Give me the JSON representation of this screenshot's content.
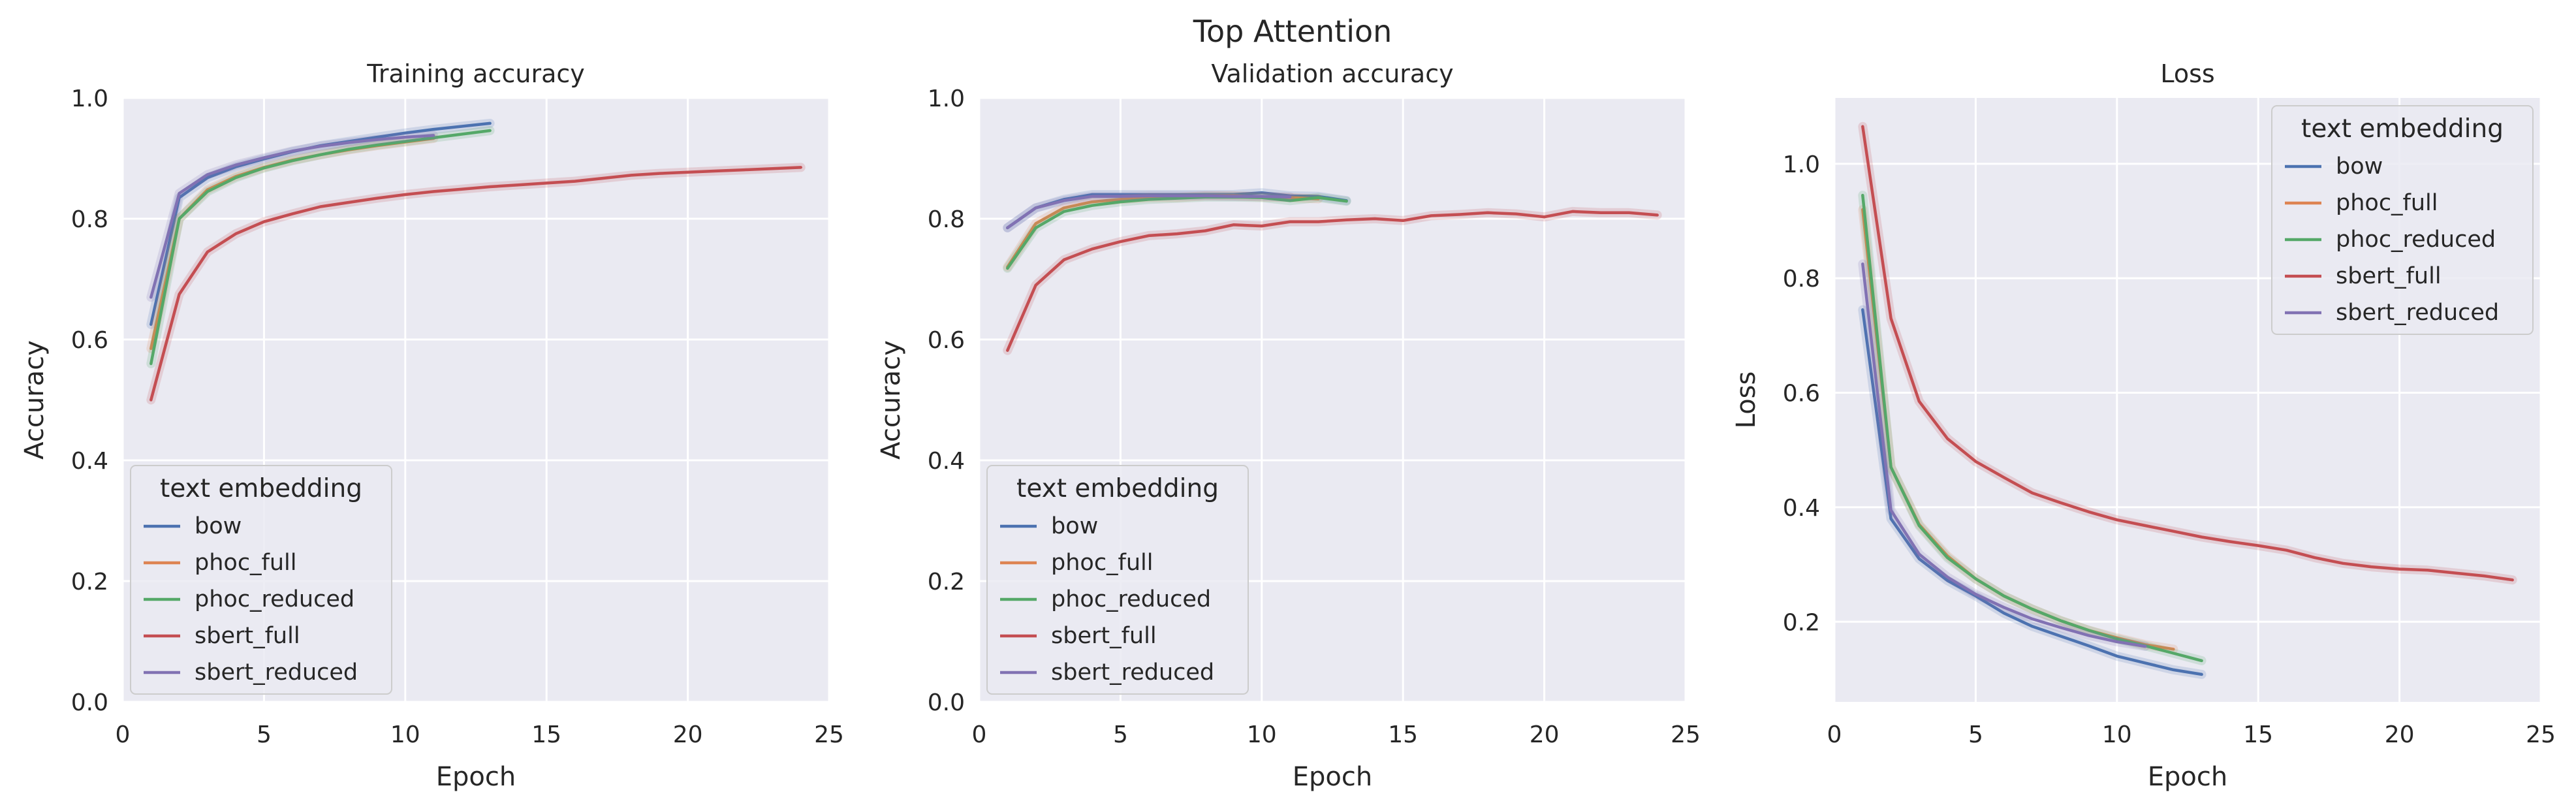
{
  "figure": {
    "title": "Top Attention"
  },
  "colors": {
    "bow": "#4c72b0",
    "phoc_full": "#dd8452",
    "phoc_reduced": "#55a868",
    "sbert_full": "#c44e52",
    "sbert_reduced": "#8172b3",
    "plot_background": "#eaeaf2",
    "grid": "#ffffff"
  },
  "legend_title": "text embedding",
  "chart_data": [
    {
      "type": "line",
      "title": "Training accuracy",
      "xlabel": "Epoch",
      "ylabel": "Accuracy",
      "xlim": [
        0,
        25
      ],
      "ylim": [
        0.0,
        1.0
      ],
      "xticks": [
        0,
        5,
        10,
        15,
        20,
        25
      ],
      "yticks": [
        0.0,
        0.2,
        0.4,
        0.6,
        0.8,
        1.0
      ],
      "xtick_labels": [
        "0",
        "5",
        "10",
        "15",
        "20",
        "25"
      ],
      "ytick_labels": [
        "0.0",
        "0.2",
        "0.4",
        "0.6",
        "0.8",
        "1.0"
      ],
      "grid": true,
      "legend": {
        "placement": "lower-left",
        "title": "text embedding",
        "entries": [
          "bow",
          "phoc_full",
          "phoc_reduced",
          "sbert_full",
          "sbert_reduced"
        ]
      },
      "series": [
        {
          "name": "bow",
          "color": "#4c72b0",
          "x": [
            1,
            2,
            3,
            4,
            5,
            6,
            7,
            8,
            9,
            10,
            11,
            12,
            13
          ],
          "y": [
            0.625,
            0.835,
            0.868,
            0.886,
            0.899,
            0.911,
            0.921,
            0.928,
            0.935,
            0.942,
            0.948,
            0.953,
            0.958
          ]
        },
        {
          "name": "phoc_full",
          "color": "#dd8452",
          "x": [
            1,
            2,
            3,
            4,
            5,
            6,
            7,
            8,
            9,
            10,
            11
          ],
          "y": [
            0.585,
            0.8,
            0.848,
            0.87,
            0.885,
            0.897,
            0.906,
            0.914,
            0.921,
            0.927,
            0.933
          ]
        },
        {
          "name": "phoc_reduced",
          "color": "#55a868",
          "x": [
            1,
            2,
            3,
            4,
            5,
            6,
            7,
            8,
            9,
            10,
            11,
            12,
            13
          ],
          "y": [
            0.56,
            0.8,
            0.845,
            0.868,
            0.884,
            0.896,
            0.906,
            0.915,
            0.922,
            0.928,
            0.934,
            0.94,
            0.946
          ]
        },
        {
          "name": "sbert_full",
          "color": "#c44e52",
          "x": [
            1,
            2,
            3,
            4,
            5,
            6,
            7,
            8,
            9,
            10,
            11,
            12,
            13,
            14,
            15,
            16,
            17,
            18,
            19,
            20,
            21,
            22,
            23,
            24
          ],
          "y": [
            0.5,
            0.675,
            0.745,
            0.775,
            0.795,
            0.808,
            0.82,
            0.827,
            0.834,
            0.84,
            0.845,
            0.849,
            0.853,
            0.856,
            0.859,
            0.862,
            0.867,
            0.872,
            0.875,
            0.877,
            0.879,
            0.881,
            0.883,
            0.885
          ]
        },
        {
          "name": "sbert_reduced",
          "color": "#8172b3",
          "x": [
            1,
            2,
            3,
            4,
            5,
            6,
            7,
            8,
            9,
            10,
            11
          ],
          "y": [
            0.67,
            0.842,
            0.873,
            0.889,
            0.901,
            0.912,
            0.92,
            0.926,
            0.931,
            0.935,
            0.938
          ]
        }
      ]
    },
    {
      "type": "line",
      "title": "Validation accuracy",
      "xlabel": "Epoch",
      "ylabel": "Accuracy",
      "xlim": [
        0,
        25
      ],
      "ylim": [
        0.0,
        1.0
      ],
      "xticks": [
        0,
        5,
        10,
        15,
        20,
        25
      ],
      "yticks": [
        0.0,
        0.2,
        0.4,
        0.6,
        0.8,
        1.0
      ],
      "xtick_labels": [
        "0",
        "5",
        "10",
        "15",
        "20",
        "25"
      ],
      "ytick_labels": [
        "0.0",
        "0.2",
        "0.4",
        "0.6",
        "0.8",
        "1.0"
      ],
      "grid": true,
      "legend": {
        "placement": "lower-left",
        "title": "text embedding",
        "entries": [
          "bow",
          "phoc_full",
          "phoc_reduced",
          "sbert_full",
          "sbert_reduced"
        ]
      },
      "series": [
        {
          "name": "bow",
          "color": "#4c72b0",
          "x": [
            1,
            2,
            3,
            4,
            5,
            6,
            7,
            8,
            9,
            10,
            11,
            12,
            13
          ],
          "y": [
            0.785,
            0.818,
            0.832,
            0.84,
            0.84,
            0.84,
            0.84,
            0.84,
            0.84,
            0.843,
            0.838,
            0.837,
            0.83
          ]
        },
        {
          "name": "phoc_full",
          "color": "#dd8452",
          "x": [
            1,
            2,
            3,
            4,
            5,
            6,
            7,
            8,
            9,
            10,
            11,
            12
          ],
          "y": [
            0.72,
            0.792,
            0.818,
            0.828,
            0.832,
            0.835,
            0.835,
            0.838,
            0.838,
            0.836,
            0.835,
            0.833
          ]
        },
        {
          "name": "phoc_reduced",
          "color": "#55a868",
          "x": [
            1,
            2,
            3,
            4,
            5,
            6,
            7,
            8,
            9,
            10,
            11,
            12,
            13
          ],
          "y": [
            0.718,
            0.785,
            0.812,
            0.822,
            0.828,
            0.832,
            0.834,
            0.836,
            0.836,
            0.835,
            0.83,
            0.835,
            0.829
          ]
        },
        {
          "name": "sbert_full",
          "color": "#c44e52",
          "x": [
            1,
            2,
            3,
            4,
            5,
            6,
            7,
            8,
            9,
            10,
            11,
            12,
            13,
            14,
            15,
            16,
            17,
            18,
            19,
            20,
            21,
            22,
            23,
            24
          ],
          "y": [
            0.582,
            0.69,
            0.732,
            0.75,
            0.762,
            0.772,
            0.775,
            0.78,
            0.79,
            0.788,
            0.795,
            0.795,
            0.798,
            0.8,
            0.797,
            0.805,
            0.807,
            0.81,
            0.808,
            0.803,
            0.812,
            0.81,
            0.81,
            0.806
          ]
        },
        {
          "name": "sbert_reduced",
          "color": "#8172b3",
          "x": [
            1,
            2,
            3,
            4,
            5,
            6,
            7,
            8,
            9,
            10,
            11
          ],
          "y": [
            0.785,
            0.818,
            0.83,
            0.837,
            0.837,
            0.838,
            0.838,
            0.838,
            0.837,
            0.837,
            0.836
          ]
        }
      ]
    },
    {
      "type": "line",
      "title": "Loss",
      "xlabel": "Epoch",
      "ylabel": "Loss",
      "xlim": [
        0,
        25
      ],
      "ylim": [
        0.06,
        1.115
      ],
      "xticks": [
        0,
        5,
        10,
        15,
        20,
        25
      ],
      "yticks": [
        0.2,
        0.4,
        0.6,
        0.8,
        1.0
      ],
      "xtick_labels": [
        "0",
        "5",
        "10",
        "15",
        "20",
        "25"
      ],
      "ytick_labels": [
        "0.2",
        "0.4",
        "0.6",
        "0.8",
        "1.0"
      ],
      "grid": true,
      "legend": {
        "placement": "top-right",
        "title": "text embedding",
        "entries": [
          "bow",
          "phoc_full",
          "phoc_reduced",
          "sbert_full",
          "sbert_reduced"
        ]
      },
      "series": [
        {
          "name": "bow",
          "color": "#4c72b0",
          "x": [
            1,
            2,
            3,
            4,
            5,
            6,
            7,
            8,
            9,
            10,
            11,
            12,
            13
          ],
          "y": [
            0.745,
            0.38,
            0.31,
            0.272,
            0.245,
            0.215,
            0.192,
            0.175,
            0.158,
            0.14,
            0.128,
            0.116,
            0.108
          ]
        },
        {
          "name": "phoc_full",
          "color": "#dd8452",
          "x": [
            1,
            2,
            3,
            4,
            5,
            6,
            7,
            8,
            9,
            10,
            11,
            12
          ],
          "y": [
            0.92,
            0.47,
            0.37,
            0.315,
            0.275,
            0.245,
            0.222,
            0.202,
            0.185,
            0.172,
            0.16,
            0.152
          ]
        },
        {
          "name": "phoc_reduced",
          "color": "#55a868",
          "x": [
            1,
            2,
            3,
            4,
            5,
            6,
            7,
            8,
            9,
            10,
            11,
            12,
            13
          ],
          "y": [
            0.945,
            0.47,
            0.368,
            0.312,
            0.275,
            0.245,
            0.222,
            0.202,
            0.185,
            0.17,
            0.158,
            0.145,
            0.132
          ]
        },
        {
          "name": "sbert_full",
          "color": "#c44e52",
          "x": [
            1,
            2,
            3,
            4,
            5,
            6,
            7,
            8,
            9,
            10,
            11,
            12,
            13,
            14,
            15,
            16,
            17,
            18,
            19,
            20,
            21,
            22,
            23,
            24
          ],
          "y": [
            1.065,
            0.73,
            0.585,
            0.52,
            0.48,
            0.452,
            0.425,
            0.408,
            0.392,
            0.378,
            0.368,
            0.358,
            0.348,
            0.34,
            0.333,
            0.325,
            0.312,
            0.302,
            0.296,
            0.292,
            0.29,
            0.285,
            0.28,
            0.273
          ]
        },
        {
          "name": "sbert_reduced",
          "color": "#8172b3",
          "x": [
            1,
            2,
            3,
            4,
            5,
            6,
            7,
            8,
            9,
            10,
            11
          ],
          "y": [
            0.825,
            0.395,
            0.318,
            0.278,
            0.248,
            0.225,
            0.205,
            0.19,
            0.176,
            0.165,
            0.157
          ]
        }
      ]
    }
  ]
}
